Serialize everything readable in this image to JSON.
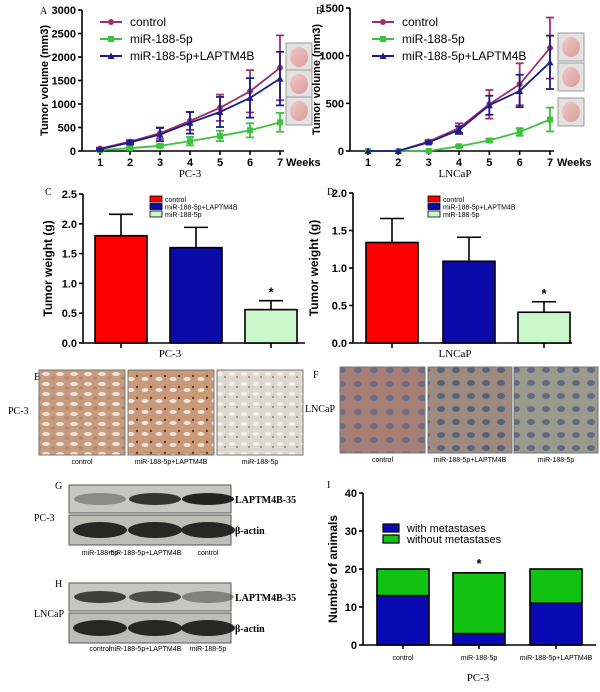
{
  "colors": {
    "control_line": "#a0306a",
    "mir_line": "#3cc23c",
    "laptm4b_line": "#1c1c8c",
    "bar_control": "#ff0000",
    "bar_laptm4b": "#0a0aa8",
    "bar_mir": "#ccf7cc",
    "with_metastases": "#0a0ab4",
    "without_metastases": "#12c212"
  },
  "chart_data": [
    {
      "panel": "A",
      "type": "line",
      "xlabel": "PC-3",
      "x_unit": "Weeks",
      "ylabel": "Tumor volume (mm3)",
      "ylim": [
        0,
        3000
      ],
      "yticks": [
        "0",
        "500",
        "1000",
        "1500",
        "2000",
        "2500",
        "3000"
      ],
      "x": [
        "1",
        "2",
        "3",
        "4",
        "5",
        "6",
        "7"
      ],
      "legend_position": "top-left",
      "series": [
        {
          "name": "control",
          "marker": "circle",
          "values": [
            50,
            200,
            380,
            640,
            920,
            1270,
            1770
          ],
          "errors": [
            20,
            30,
            120,
            190,
            280,
            450,
            690
          ]
        },
        {
          "name": "miR-188-5p",
          "marker": "square",
          "values": [
            20,
            60,
            110,
            210,
            320,
            440,
            610
          ],
          "errors": [
            10,
            20,
            30,
            90,
            110,
            150,
            200
          ]
        },
        {
          "name": "miR-188-5p+LAPTM4B",
          "marker": "triangle",
          "values": [
            40,
            180,
            350,
            600,
            830,
            1130,
            1540
          ],
          "errors": [
            20,
            40,
            140,
            230,
            320,
            420,
            570
          ]
        }
      ]
    },
    {
      "panel": "B",
      "type": "line",
      "xlabel": "LNCaP",
      "x_unit": "Weeks",
      "ylabel": "Tumor volume (mm3)",
      "ylim": [
        0,
        1500
      ],
      "yticks": [
        "0",
        "500",
        "1000",
        "1500"
      ],
      "x": [
        "1",
        "2",
        "3",
        "4",
        "5",
        "6",
        "7"
      ],
      "legend_position": "top-left",
      "series": [
        {
          "name": "control",
          "marker": "circle",
          "values": [
            0,
            0,
            100,
            240,
            490,
            700,
            1080
          ],
          "errors": [
            0,
            0,
            15,
            50,
            150,
            220,
            320
          ]
        },
        {
          "name": "miR-188-5p",
          "marker": "square",
          "values": [
            0,
            0,
            0,
            50,
            110,
            200,
            330
          ],
          "errors": [
            0,
            0,
            0,
            10,
            15,
            40,
            125
          ]
        },
        {
          "name": "miR-188-5p+LAPTM4B",
          "marker": "triangle",
          "values": [
            0,
            0,
            90,
            220,
            480,
            630,
            930
          ],
          "errors": [
            0,
            0,
            10,
            40,
            100,
            170,
            280
          ]
        }
      ]
    },
    {
      "panel": "C",
      "type": "bar",
      "xlabel": "PC-3",
      "ylabel": "Tumor weight (g)",
      "ylim": [
        0,
        2.5
      ],
      "yticks": [
        "0.0",
        "0.5",
        "1.0",
        "1.5",
        "2.0",
        "2.5"
      ],
      "legend_position": "top-center",
      "series": [
        {
          "name": "control",
          "value": 1.8,
          "error": 0.36,
          "mark": ""
        },
        {
          "name": "miR-188-5p+LAPTM4B",
          "value": 1.6,
          "error": 0.34,
          "mark": ""
        },
        {
          "name": "miR-188-5p",
          "value": 0.56,
          "error": 0.15,
          "mark": "*"
        }
      ]
    },
    {
      "panel": "D",
      "type": "bar",
      "xlabel": "LNCaP",
      "ylabel": "Tumor weight (g)",
      "ylim": [
        0,
        2.0
      ],
      "yticks": [
        "0.0",
        "0.5",
        "1.0",
        "1.5",
        "2.0"
      ],
      "legend_position": "top-center",
      "series": [
        {
          "name": "control",
          "value": 1.34,
          "error": 0.32,
          "mark": ""
        },
        {
          "name": "miR-188-5p+LAPTM4B",
          "value": 1.09,
          "error": 0.32,
          "mark": ""
        },
        {
          "name": "miR-188-5p",
          "value": 0.41,
          "error": 0.14,
          "mark": "*"
        }
      ]
    },
    {
      "panel": "I",
      "type": "bar",
      "stacked": true,
      "xlabel": "PC-3",
      "ylabel": "Number of animals",
      "ylim": [
        0,
        40
      ],
      "yticks": [
        "0",
        "10",
        "20",
        "30",
        "40"
      ],
      "categories": [
        "control",
        "miR-188-5p",
        "miR-188-5p+LAPTM4B"
      ],
      "legend_position": "top-left",
      "series": [
        {
          "name": "with metastases",
          "values": [
            13,
            3,
            11
          ]
        },
        {
          "name": "without metastases",
          "values": [
            7,
            16,
            9
          ]
        }
      ],
      "marks": [
        "",
        "*",
        ""
      ]
    }
  ],
  "panel_e": {
    "letter": "E",
    "cell_line": "PC-3",
    "labels": [
      "control",
      "miR-188-5p+LAPTM4B",
      "miR-188-5p"
    ]
  },
  "panel_f": {
    "letter": "F",
    "cell_line": "LNCaP",
    "labels": [
      "control",
      "miR-188-5p+LAPTM4B",
      "miR-188-5p"
    ]
  },
  "panel_g": {
    "letter": "G",
    "cell_line": "PC-3",
    "band_top": "LAPTM4B-35",
    "band_bottom": "β-actin",
    "lanes": [
      "miR-188-5p",
      "miR-188-5p+LAPTM4B",
      "control"
    ],
    "band_intensity": [
      0.35,
      0.85,
      0.95
    ]
  },
  "panel_h": {
    "letter": "H",
    "cell_line": "LNCaP",
    "band_top": "LAPTM4B-35",
    "band_bottom": "β-actin",
    "lanes": [
      "control",
      "miR-188-5p+LAPTM4B",
      "miR-188-5p"
    ],
    "band_intensity": [
      0.8,
      0.7,
      0.4
    ]
  }
}
